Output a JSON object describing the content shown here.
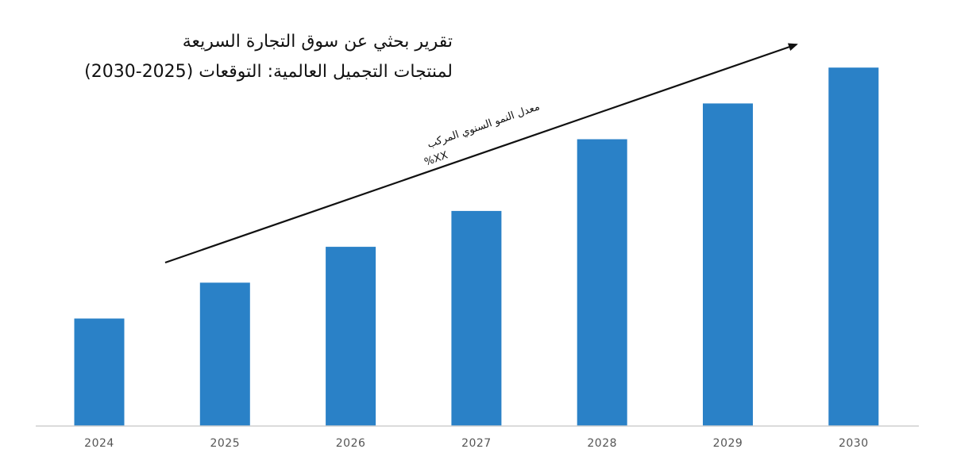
{
  "title": {
    "line1": "تقرير بحثي عن سوق التجارة السريعة",
    "line2": "لمنتجات التجميل العالمية: التوقعات (2025-2030)"
  },
  "chart_data": {
    "type": "bar",
    "categories": [
      "2024",
      "2025",
      "2026",
      "2027",
      "2028",
      "2029",
      "2030"
    ],
    "values": [
      30,
      40,
      50,
      60,
      80,
      90,
      100
    ],
    "ylim": [
      0,
      110
    ],
    "grid": false,
    "bar_color": "#2a81c7",
    "axis_color": "#cfcfcf",
    "annotation": {
      "line1": "معدل النمو السنوي المركب",
      "line2": "%XX"
    }
  }
}
